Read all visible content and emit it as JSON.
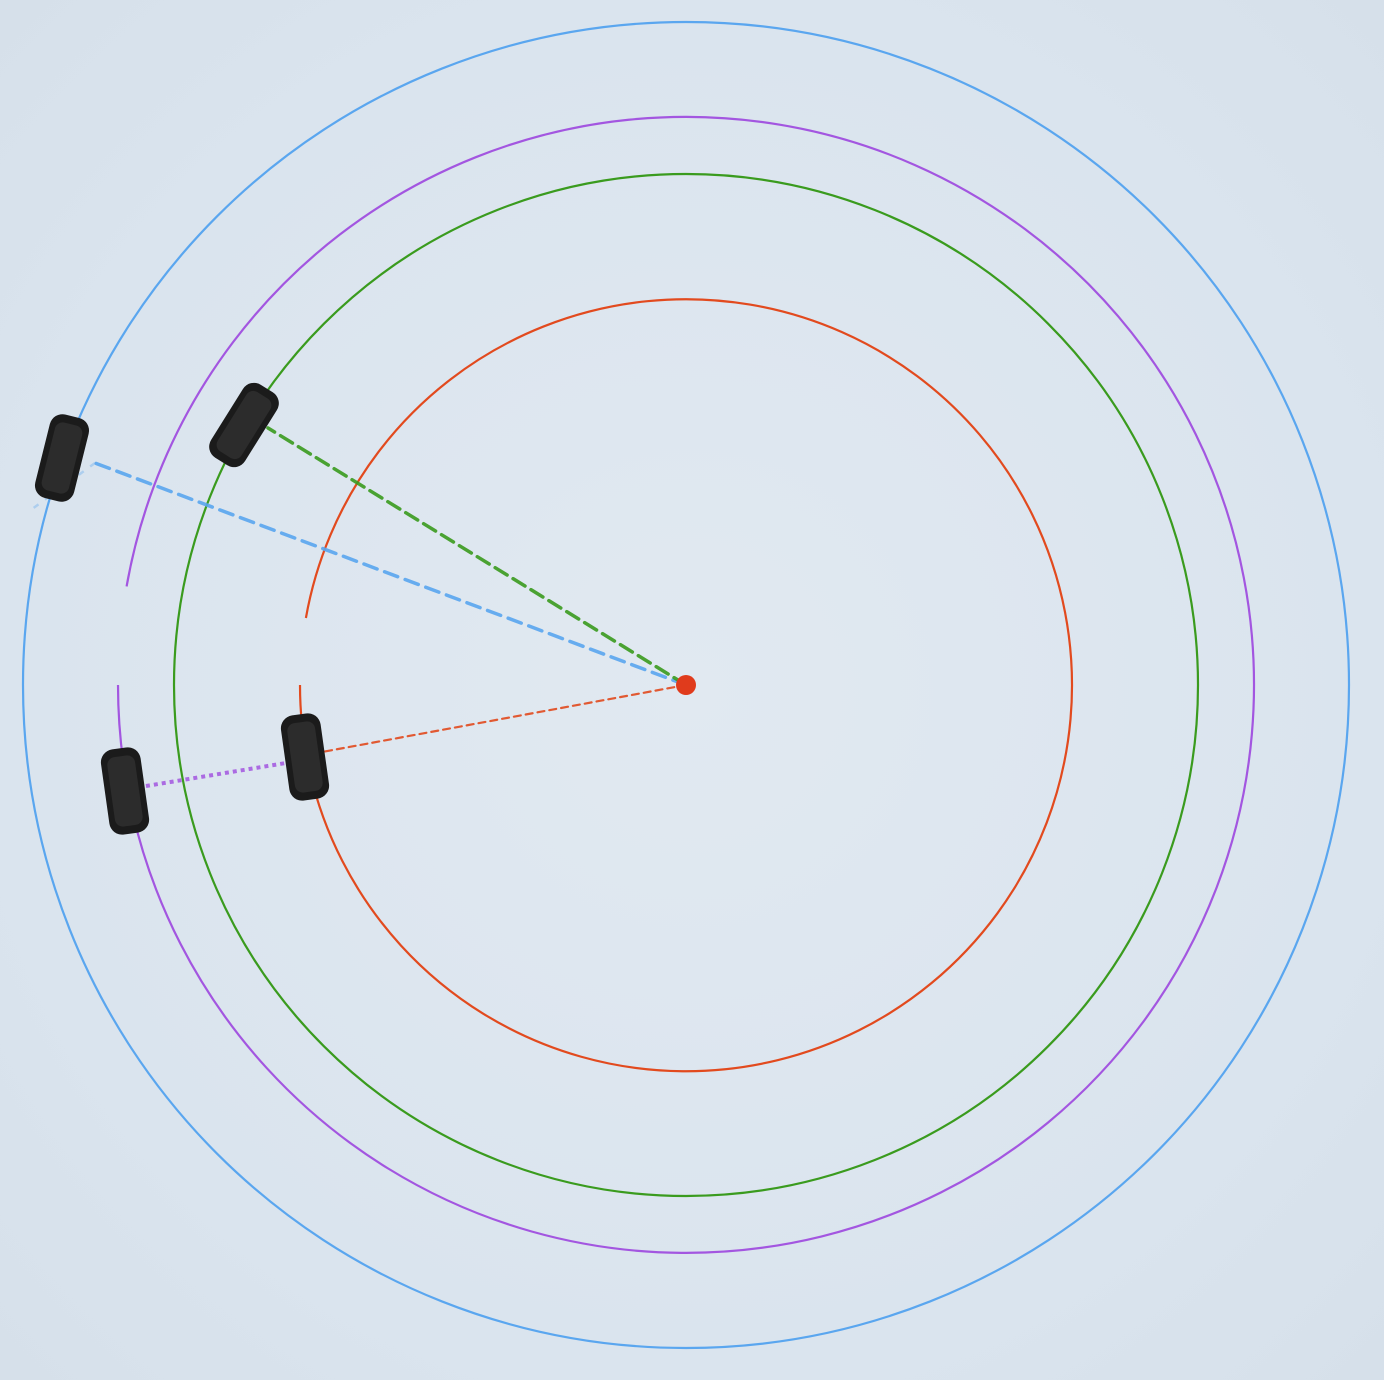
{
  "diagram": {
    "background": "#dde6ef",
    "pivot_color": "#e03b1c",
    "wheel_color": "#1b1b1b",
    "paths": [
      {
        "id": "red-path",
        "color": "#e24a1e",
        "wheel": "inner-front-wheel"
      },
      {
        "id": "green-path",
        "color": "#3a9b1e",
        "wheel": "outer-front-wheel"
      },
      {
        "id": "purple-path",
        "color": "#a356e0",
        "wheel": "inner-rear-wheel"
      },
      {
        "id": "blue-path",
        "color": "#5aa6ef",
        "wheel": "outer-rear-wheel"
      }
    ]
  }
}
